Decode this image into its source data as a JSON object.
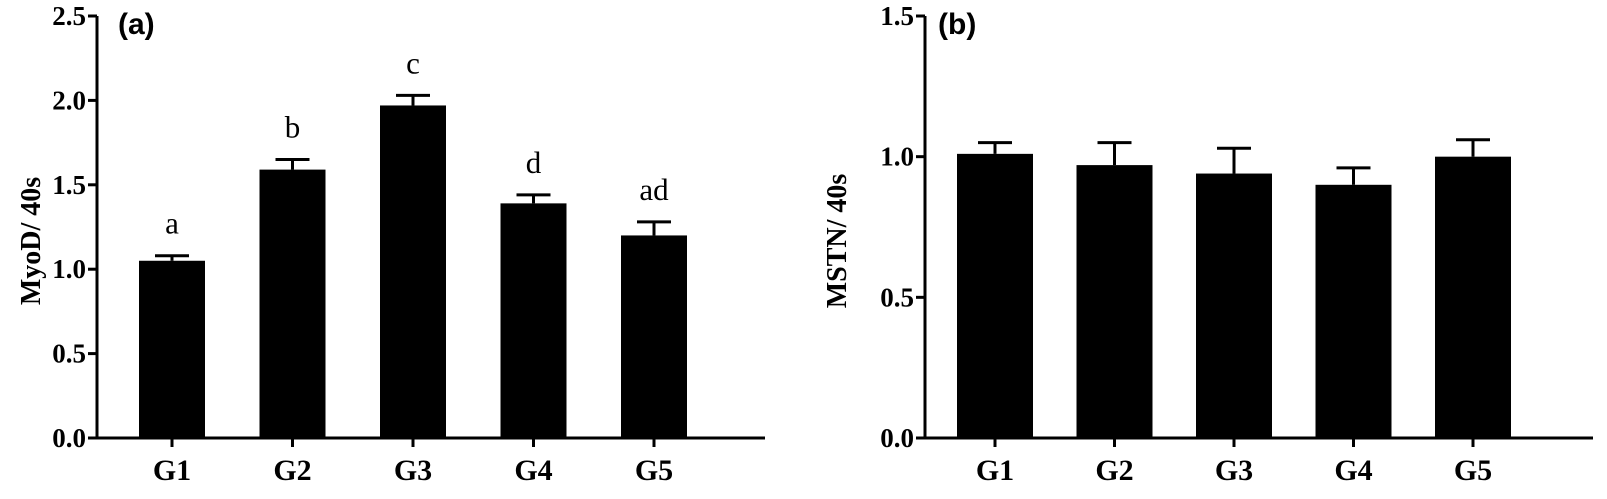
{
  "chart_data": [
    {
      "type": "bar",
      "panel_label": "(a)",
      "categories": [
        "G1",
        "G2",
        "G3",
        "G4",
        "G5"
      ],
      "values": [
        1.05,
        1.59,
        1.97,
        1.39,
        1.2
      ],
      "errors": [
        0.03,
        0.06,
        0.06,
        0.05,
        0.08
      ],
      "significance_labels": [
        "a",
        "b",
        "c",
        "d",
        "ad"
      ],
      "ylabel": "MyoD/ 40s",
      "ylim": [
        0,
        2.5
      ],
      "yticks": [
        "0.0",
        "0.5",
        "1.0",
        "1.5",
        "2.0",
        "2.5"
      ],
      "bar_color": "#000000",
      "grid": false
    },
    {
      "type": "bar",
      "panel_label": "(b)",
      "categories": [
        "G1",
        "G2",
        "G3",
        "G4",
        "G5"
      ],
      "values": [
        1.01,
        0.97,
        0.94,
        0.9,
        1.0
      ],
      "errors": [
        0.04,
        0.08,
        0.09,
        0.06,
        0.06
      ],
      "significance_labels": [],
      "ylabel": "MSTN/ 40s",
      "ylim": [
        0,
        1.5
      ],
      "yticks": [
        "0.0",
        "0.5",
        "1.0",
        "1.5"
      ],
      "bar_color": "#000000",
      "grid": false
    }
  ]
}
